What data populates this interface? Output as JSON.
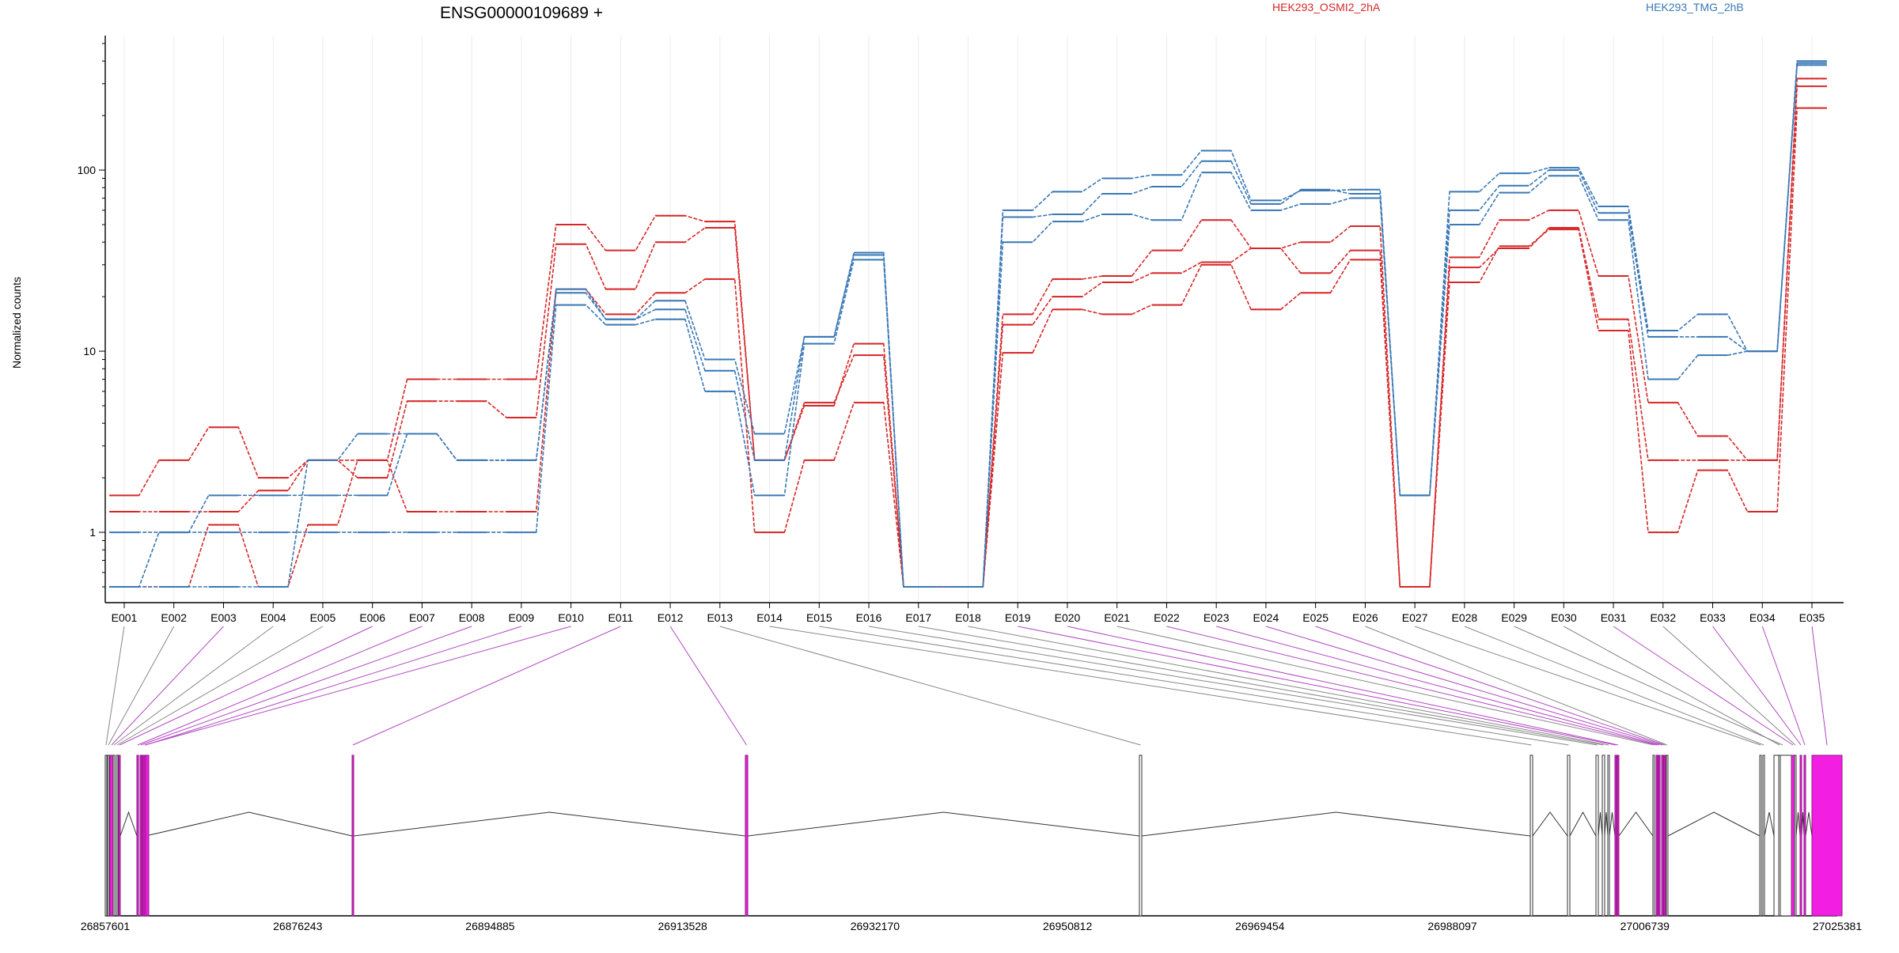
{
  "header": {
    "gene_title": "ENSG00000109689 +",
    "legend": [
      {
        "label": "HEK293_OSMI2_2hA",
        "color": "#d62728"
      },
      {
        "label": "HEK293_TMG_2hB",
        "color": "#3a78b5"
      }
    ]
  },
  "colors": {
    "osmi": "#d62728",
    "tmg": "#3a78b5",
    "exon_highlight": "#f21ee2",
    "connector_highlight": "#b146c2",
    "connector_plain": "#888888",
    "intron": "#333333"
  },
  "chart_data": {
    "type": "line",
    "ylabel": "Normalized counts",
    "xlabel": "",
    "y_scale": "log",
    "ylim": [
      0.5,
      500
    ],
    "y_ticks": [
      1,
      10,
      100
    ],
    "y_tick_labels": [
      "1",
      "10",
      "100"
    ],
    "grid": "vertical-per-exon",
    "categories": [
      "E001",
      "E002",
      "E003",
      "E004",
      "E005",
      "E006",
      "E007",
      "E008",
      "E009",
      "E010",
      "E011",
      "E012",
      "E013",
      "E014",
      "E015",
      "E016",
      "E017",
      "E018",
      "E019",
      "E020",
      "E021",
      "E022",
      "E023",
      "E024",
      "E025",
      "E026",
      "E027",
      "E028",
      "E029",
      "E030",
      "E031",
      "E032",
      "E033",
      "E034",
      "E035"
    ],
    "series": [
      {
        "group": "osmi",
        "values": [
          1.6,
          2.5,
          3.8,
          2.0,
          2.5,
          2.5,
          7.0,
          7.0,
          7.0,
          50,
          36,
          56,
          52,
          2.5,
          5.0,
          11,
          0.5,
          0.5,
          16,
          25,
          26,
          36,
          53,
          37,
          40,
          49,
          0.5,
          33,
          53,
          60,
          26,
          5.2,
          3.4,
          2.5,
          320
        ]
      },
      {
        "group": "osmi",
        "values": [
          1.3,
          1.3,
          1.3,
          1.7,
          2.5,
          2.0,
          5.3,
          5.3,
          4.3,
          39,
          22,
          40,
          48,
          2.5,
          5.2,
          9.5,
          0.5,
          0.5,
          14,
          20,
          24,
          27,
          31,
          37,
          27,
          36,
          0.5,
          29,
          37,
          48,
          15,
          2.5,
          2.5,
          2.5,
          290
        ]
      },
      {
        "group": "osmi",
        "values": [
          0.5,
          0.5,
          1.1,
          0.5,
          1.1,
          2.5,
          1.3,
          1.3,
          1.3,
          22,
          16,
          21,
          25,
          1.0,
          2.5,
          5.2,
          0.5,
          0.5,
          9.8,
          17,
          16,
          18,
          30,
          17,
          21,
          32,
          0.5,
          24,
          38,
          47,
          13,
          1.0,
          2.2,
          1.3,
          220
        ]
      },
      {
        "group": "tmg",
        "values": [
          1.0,
          1.0,
          1.0,
          1.0,
          1.0,
          1.0,
          1.0,
          1.0,
          1.0,
          18,
          14,
          15,
          6.0,
          1.6,
          11,
          32,
          0.5,
          0.5,
          40,
          52,
          57,
          53,
          97,
          60,
          65,
          70,
          1.6,
          50,
          75,
          93,
          53,
          7.0,
          9.5,
          10,
          380
        ]
      },
      {
        "group": "tmg",
        "values": [
          0.5,
          1.0,
          1.6,
          1.6,
          1.6,
          1.6,
          3.5,
          2.5,
          2.5,
          21,
          15,
          17,
          7.8,
          2.5,
          12,
          34,
          0.5,
          0.5,
          55,
          57,
          74,
          81,
          112,
          65,
          78,
          74,
          1.6,
          60,
          82,
          100,
          58,
          12,
          12,
          10,
          390
        ]
      },
      {
        "group": "tmg",
        "values": [
          0.5,
          0.5,
          0.5,
          0.5,
          2.5,
          3.5,
          3.5,
          2.5,
          2.5,
          22,
          15,
          19,
          9.0,
          3.5,
          12,
          35,
          0.5,
          0.5,
          60,
          76,
          90,
          94,
          128,
          68,
          77,
          78,
          1.6,
          76,
          96,
          103,
          63,
          13,
          16,
          10,
          400
        ]
      }
    ],
    "coordinate_labels": [
      "26857601",
      "26876243",
      "26894885",
      "26913528",
      "26932170",
      "26950812",
      "26969454",
      "26988097",
      "27006739",
      "27025381"
    ],
    "exon_highlight": [
      false,
      false,
      true,
      false,
      false,
      true,
      true,
      true,
      true,
      true,
      true,
      true,
      false,
      false,
      false,
      false,
      false,
      false,
      true,
      true,
      false,
      true,
      true,
      true,
      true,
      false,
      false,
      false,
      false,
      false,
      true,
      false,
      true,
      true,
      true
    ]
  }
}
